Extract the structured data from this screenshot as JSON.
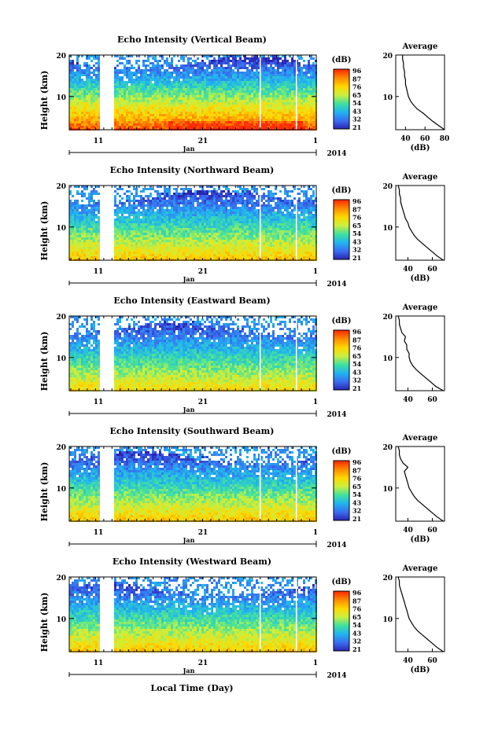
{
  "figure": {
    "xlabel": "Local Time (Day)",
    "x_month_label": "Jan",
    "x_year_label": "2014",
    "x_ticks": [
      "11",
      "21",
      "1"
    ],
    "y_label": "Height (km)",
    "y_ticks": [
      "20",
      "10"
    ],
    "colorbar_unit": "(dB)",
    "colorbar_ticks": [
      "96",
      "87",
      "76",
      "65",
      "54",
      "43",
      "32",
      "21"
    ],
    "colorbar_colors": [
      "#ff2a00",
      "#ff8c00",
      "#ffd800",
      "#c8f040",
      "#40e0a0",
      "#20b4f0",
      "#3a6cf0",
      "#2a22b0"
    ],
    "average_title": "Average",
    "average_xlabel": "(dB)"
  },
  "chart_data": [
    {
      "type": "heatmap",
      "title": "Echo Intensity (Vertical Beam)",
      "ylabel": "Height (km)",
      "ylim": [
        2,
        20
      ],
      "color_range": [
        21,
        96
      ],
      "profile": {
        "title": "Average",
        "xlabel": "(dB)",
        "x_ticks": [
          "40",
          "60",
          "80"
        ],
        "xlim": [
          30,
          80
        ],
        "height_km": [
          2,
          3,
          4,
          5,
          6,
          7,
          8,
          9,
          10,
          11,
          12,
          13,
          14,
          15,
          16,
          17,
          18,
          19,
          20
        ],
        "values_db": [
          80,
          74,
          68,
          63,
          58,
          52,
          48,
          45,
          43,
          42,
          41,
          40,
          40,
          39,
          39,
          38,
          38,
          37,
          37
        ]
      }
    },
    {
      "type": "heatmap",
      "title": "Echo Intensity (Northward Beam)",
      "ylabel": "Height (km)",
      "ylim": [
        2,
        20
      ],
      "color_range": [
        21,
        96
      ],
      "profile": {
        "title": "Average",
        "xlabel": "(dB)",
        "x_ticks": [
          "40",
          "60"
        ],
        "xlim": [
          30,
          70
        ],
        "height_km": [
          2,
          3,
          4,
          5,
          6,
          7,
          8,
          9,
          10,
          11,
          12,
          13,
          14,
          15,
          16,
          17,
          18,
          19,
          20
        ],
        "values_db": [
          69,
          64,
          60,
          56,
          52,
          48,
          45,
          43,
          41,
          40,
          38,
          37,
          36,
          35,
          34,
          34,
          33,
          33,
          32
        ]
      }
    },
    {
      "type": "heatmap",
      "title": "Echo Intensity (Eastward Beam)",
      "ylabel": "Height (km)",
      "ylim": [
        2,
        20
      ],
      "color_range": [
        21,
        96
      ],
      "profile": {
        "title": "Average",
        "xlabel": "",
        "x_ticks": [
          "40",
          "60"
        ],
        "xlim": [
          30,
          70
        ],
        "height_km": [
          2,
          3,
          4,
          5,
          6,
          7,
          8,
          9,
          10,
          11,
          12,
          13,
          14,
          15,
          16,
          17,
          18,
          19,
          20
        ],
        "values_db": [
          69,
          63,
          59,
          55,
          51,
          47,
          44,
          42,
          41,
          41,
          39,
          39,
          37,
          38,
          35,
          34,
          33,
          33,
          32
        ]
      }
    },
    {
      "type": "heatmap",
      "title": "Echo Intensity (Southward Beam)",
      "ylabel": "Height (km)",
      "ylim": [
        2,
        20
      ],
      "color_range": [
        21,
        96
      ],
      "profile": {
        "title": "Average",
        "xlabel": "(dB)",
        "x_ticks": [
          "40",
          "60"
        ],
        "xlim": [
          30,
          70
        ],
        "height_km": [
          2,
          3,
          4,
          5,
          6,
          7,
          8,
          9,
          10,
          11,
          12,
          13,
          14,
          15,
          16,
          17,
          18,
          19,
          20
        ],
        "values_db": [
          69,
          64,
          60,
          56,
          52,
          48,
          45,
          43,
          41,
          40,
          39,
          38,
          37,
          40,
          36,
          34,
          33,
          33,
          32
        ]
      }
    },
    {
      "type": "heatmap",
      "title": "Echo Intensity (Westward Beam)",
      "ylabel": "Height (km)",
      "ylim": [
        2,
        20
      ],
      "color_range": [
        21,
        96
      ],
      "profile": {
        "title": "Average",
        "xlabel": "(dB)",
        "x_ticks": [
          "40",
          "60"
        ],
        "xlim": [
          30,
          70
        ],
        "height_km": [
          2,
          3,
          4,
          5,
          6,
          7,
          8,
          9,
          10,
          11,
          12,
          13,
          14,
          15,
          16,
          17,
          18,
          19,
          20
        ],
        "values_db": [
          69,
          64,
          60,
          56,
          52,
          48,
          45,
          43,
          41,
          40,
          39,
          38,
          37,
          36,
          35,
          34,
          33,
          33,
          32
        ]
      }
    }
  ]
}
